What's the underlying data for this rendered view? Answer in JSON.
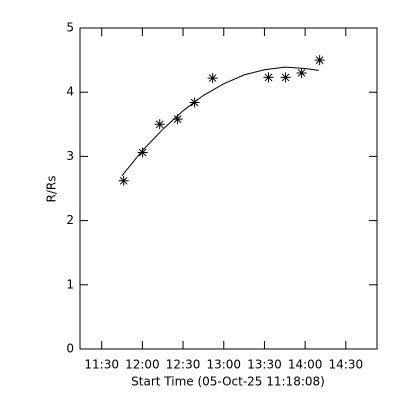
{
  "chart_data": {
    "type": "scatter",
    "x_label": "Start Time (05-Oct-25 11:18:08)",
    "y_label": "R/Rs",
    "xlim": [
      674,
      893
    ],
    "ylim": [
      0,
      5
    ],
    "xticks": [
      {
        "value": 690,
        "label": "11:30"
      },
      {
        "value": 720,
        "label": "12:00"
      },
      {
        "value": 750,
        "label": "12:30"
      },
      {
        "value": 780,
        "label": "13:00"
      },
      {
        "value": 810,
        "label": "13:30"
      },
      {
        "value": 840,
        "label": "14:00"
      },
      {
        "value": 870,
        "label": "14:30"
      }
    ],
    "yticks": [
      0,
      1,
      2,
      3,
      4,
      5
    ],
    "series": [
      {
        "kind": "points",
        "color": "#000000",
        "x": [
          706.2,
          720.2,
          732.8,
          746,
          758.5,
          771.8,
          813,
          825.6,
          837.4,
          850.7
        ],
        "values": [
          2.62,
          3.06,
          3.5,
          3.58,
          3.84,
          4.22,
          4.23,
          4.23,
          4.3,
          4.5
        ]
      },
      {
        "kind": "line",
        "color": "#000000",
        "x": [
          705,
          720,
          735,
          750,
          765,
          780,
          795,
          810,
          825,
          840,
          850
        ],
        "values": [
          2.7,
          3.09,
          3.42,
          3.71,
          3.95,
          4.13,
          4.27,
          4.35,
          4.39,
          4.37,
          4.34
        ]
      }
    ]
  }
}
